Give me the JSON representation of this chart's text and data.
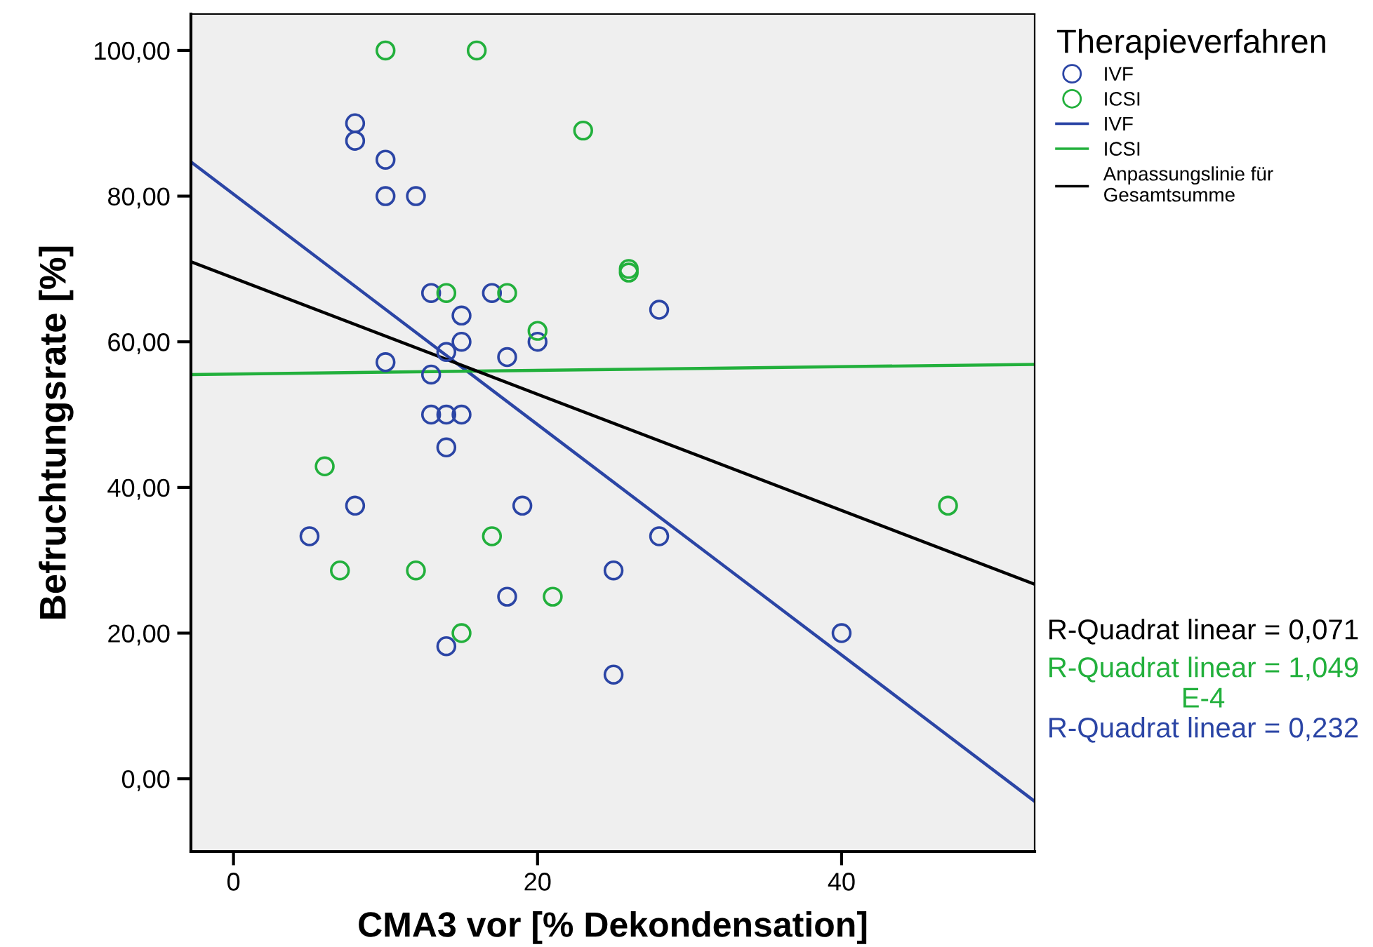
{
  "chart_data": {
    "type": "scatter",
    "xlabel": "CMA3 vor [% Dekondensation]",
    "ylabel": "Befruchtungsrate [%]",
    "legend_title": "Therapieverfahren",
    "legend": "top right",
    "grid": false,
    "xlim": [
      -2.8,
      52.7
    ],
    "ylim": [
      -10,
      105
    ],
    "xticks": [
      0,
      20,
      40
    ],
    "yticks": [
      {
        "value": 0,
        "label": "0,00"
      },
      {
        "value": 20,
        "label": "20,00"
      },
      {
        "value": 40,
        "label": "40,00"
      },
      {
        "value": 60,
        "label": "60,00"
      },
      {
        "value": 80,
        "label": "80,00"
      },
      {
        "value": 100,
        "label": "100,00"
      }
    ],
    "series": [
      {
        "name": "IVF",
        "marker": "circle",
        "color": "#2b45a5",
        "x": [
          8,
          8,
          10,
          10,
          12,
          13,
          17,
          15,
          28,
          15,
          14,
          20,
          10,
          18,
          13,
          13,
          14,
          15,
          14,
          8,
          19,
          5,
          28,
          25,
          18,
          14,
          25,
          40
        ],
        "values": [
          90,
          87.6,
          85,
          80,
          80,
          66.7,
          66.7,
          63.6,
          64.4,
          60,
          58.6,
          60,
          57.2,
          57.9,
          55.5,
          50,
          50,
          50,
          45.5,
          37.5,
          37.5,
          33.3,
          33.3,
          28.6,
          25,
          18.2,
          14.3,
          20
        ]
      },
      {
        "name": "ICSI",
        "marker": "circle",
        "color": "#22b03c",
        "x": [
          10,
          16,
          23,
          26,
          26,
          14,
          18,
          20,
          6,
          17,
          7,
          12,
          21,
          15,
          47
        ],
        "values": [
          100,
          100,
          89,
          70,
          69.5,
          66.7,
          66.7,
          61.5,
          42.9,
          33.3,
          28.6,
          28.6,
          25,
          20,
          37.5
        ]
      },
      {
        "name": "IVF",
        "type": "line",
        "color": "#2b45a5",
        "x": [
          -2.8,
          52.7
        ],
        "values": [
          84.7,
          -3.1
        ]
      },
      {
        "name": "ICSI",
        "type": "line",
        "color": "#22b03c",
        "x": [
          -2.8,
          52.7
        ],
        "values": [
          55.5,
          56.9
        ]
      },
      {
        "name": "Anpassungslinie für Gesamtsumme",
        "type": "line",
        "color": "#000000",
        "x": [
          -2.8,
          52.7
        ],
        "values": [
          71.0,
          26.7
        ]
      }
    ],
    "annotations": [
      "R-Quadrat linear = 0,071",
      "R-Quadrat linear = 1,049\nE-4",
      "R-Quadrat linear = 0,232"
    ]
  }
}
